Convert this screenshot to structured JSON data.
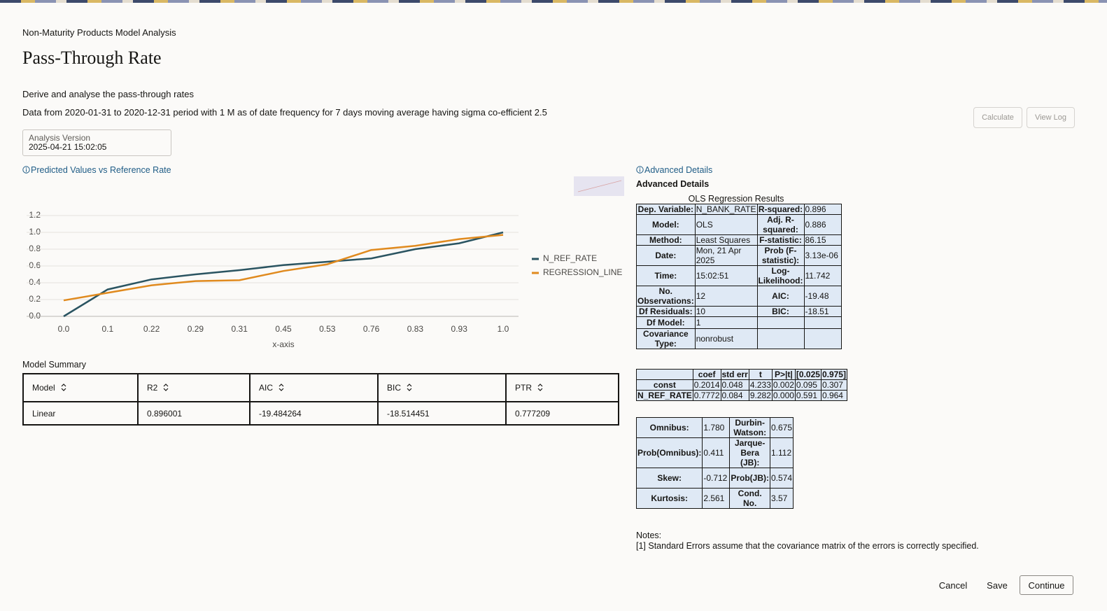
{
  "header": {
    "breadcrumb": "Non-Maturity Products Model Analysis",
    "title": "Pass-Through Rate",
    "subtitle": "Derive and analyse the pass-through rates",
    "description": "Data from 2020-01-31 to 2020-12-31 period with 1 M as of date frequency for 7 days moving average having sigma co-efficient 2.5"
  },
  "toolbar": {
    "calculate": "Calculate",
    "view_log": "View Log"
  },
  "analysis_version": {
    "label": "Analysis Version",
    "value": "2025-04-21 15:02:05"
  },
  "chart_link": "Predicted Values vs Reference Rate",
  "chart_data": {
    "type": "line",
    "x_label": "x-axis",
    "categories": [
      "0.0",
      "0.1",
      "0.22",
      "0.29",
      "0.31",
      "0.45",
      "0.53",
      "0.76",
      "0.83",
      "0.93",
      "1.0"
    ],
    "series": [
      {
        "name": "N_REF_RATE",
        "color": "#2a5461",
        "values": [
          0.0,
          0.32,
          0.44,
          0.5,
          0.55,
          0.61,
          0.65,
          0.69,
          0.8,
          0.87,
          1.0
        ]
      },
      {
        "name": "REGRESSION_LINE",
        "color": "#e08a1e",
        "values": [
          0.19,
          0.28,
          0.37,
          0.42,
          0.43,
          0.54,
          0.62,
          0.79,
          0.84,
          0.92,
          0.97
        ]
      }
    ],
    "ylim": [
      0,
      1.2
    ],
    "yticks": [
      {
        "value": 0,
        "label": "0.0"
      },
      0.2,
      0.4,
      0.6,
      0.8,
      {
        "value": 1,
        "label": "1.0"
      },
      1.2
    ],
    "grid": true,
    "legend": "right"
  },
  "model_summary": {
    "title": "Model Summary",
    "columns": [
      "Model",
      "R2",
      "AIC",
      "BIC",
      "PTR"
    ],
    "rows": [
      [
        "Linear",
        "0.896001",
        "-19.484264",
        "-18.514451",
        "0.777209"
      ]
    ]
  },
  "advanced": {
    "link": "Advanced Details",
    "title": "Advanced Details",
    "caption": "OLS Regression Results",
    "summary": [
      [
        "Dep. Variable:",
        "N_BANK_RATE",
        "R-squared:",
        "0.896"
      ],
      [
        "Model:",
        "OLS",
        "Adj. R-squared:",
        "0.886"
      ],
      [
        "Method:",
        "Least Squares",
        "F-statistic:",
        "86.15"
      ],
      [
        "Date:",
        "Mon, 21 Apr 2025",
        "Prob (F-statistic):",
        "3.13e-06"
      ],
      [
        "Time:",
        "15:02:51",
        "Log-Likelihood:",
        "11.742"
      ],
      [
        "No. Observations:",
        "12",
        "AIC:",
        "-19.48"
      ],
      [
        "Df Residuals:",
        "10",
        "BIC:",
        "-18.51"
      ],
      [
        "Df Model:",
        "1"
      ],
      [
        "Covariance Type:",
        "nonrobust"
      ]
    ],
    "coef_columns": [
      "coef",
      "std err",
      "t",
      "P>|t|",
      "[0.025",
      "0.975]"
    ],
    "coef_rows": [
      [
        "const",
        "0.2014",
        "0.048",
        "4.233",
        "0.002",
        "0.095",
        "0.307"
      ],
      [
        "N_REF_RATE",
        "0.7772",
        "0.084",
        "9.282",
        "0.000",
        "0.591",
        "0.964"
      ]
    ],
    "diagnostics": [
      [
        "Omnibus:",
        "1.780",
        "Durbin-Watson:",
        "0.675"
      ],
      [
        "Prob(Omnibus):",
        "0.411",
        "Jarque-Bera (JB):",
        "1.112"
      ],
      [
        "Skew:",
        "-0.712",
        "Prob(JB):",
        "0.574"
      ],
      [
        "Kurtosis:",
        "2.561",
        "Cond. No.",
        "3.57"
      ]
    ],
    "notes": [
      "Notes:",
      "[1] Standard Errors assume that the covariance matrix of the errors is correctly specified."
    ]
  },
  "footer": {
    "cancel": "Cancel",
    "save": "Save",
    "continue": "Continue"
  }
}
